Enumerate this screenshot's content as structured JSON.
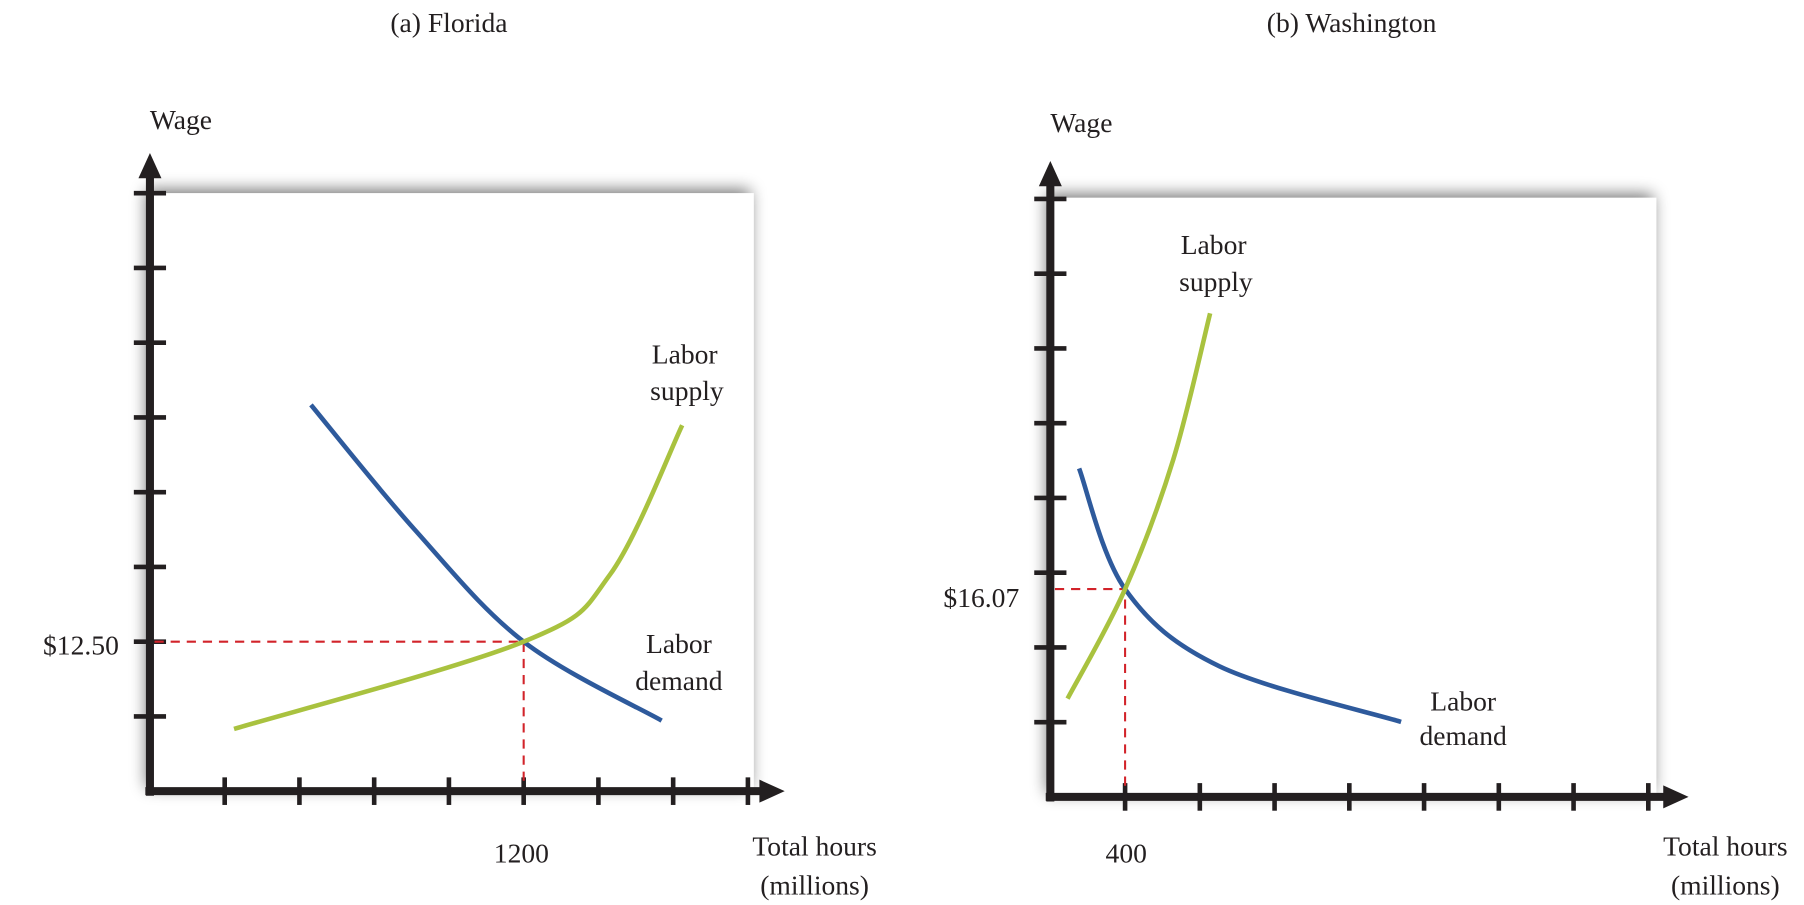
{
  "chart_data": [
    {
      "type": "line",
      "title": "(a) Florida",
      "ylabel": "Wage",
      "xlabel": [
        "Total hours",
        "(millions)"
      ],
      "x_tick_step": 240,
      "y_tick_step": 6.25,
      "xlim": [
        0,
        1920
      ],
      "ylim": [
        0,
        50
      ],
      "ticks_x": 8,
      "ticks_y": 8,
      "equilibrium": {
        "x": 1200,
        "y": 12.5,
        "x_label": "1200",
        "y_label": "$12.50"
      },
      "series": [
        {
          "name": "Labor demand",
          "label_lines": [
            "Labor",
            "demand"
          ],
          "color": "#2e5a9c",
          "points": [
            [
              517,
              32.3
            ],
            [
              849,
              21.9
            ],
            [
              1200,
              12.5
            ],
            [
              1643,
              5.9
            ]
          ]
        },
        {
          "name": "Labor supply",
          "label_lines": [
            "Labor",
            "supply"
          ],
          "color": "#a9c23f",
          "points": [
            [
              270,
              5.2
            ],
            [
              1200,
              12.5
            ],
            [
              1477,
              18.1
            ],
            [
              1709,
              30.6
            ]
          ]
        }
      ]
    },
    {
      "type": "line",
      "title": "(b) Washington",
      "ylabel": "Wage",
      "xlabel": [
        "Total hours",
        "(millions)"
      ],
      "x_tick_step": 400,
      "y_tick_step": 5.78,
      "xlim": [
        0,
        3200
      ],
      "ylim": [
        0,
        46.2
      ],
      "ticks_x": 8,
      "ticks_y": 8,
      "equilibrium": {
        "x": 400,
        "y": 16.07,
        "x_label": "400",
        "y_label": "$16.07"
      },
      "series": [
        {
          "name": "Labor demand",
          "label_lines": [
            "Labor",
            "demand"
          ],
          "color": "#2e5a9c",
          "points": [
            [
              154,
              25.4
            ],
            [
              400,
              16.07
            ],
            [
              905,
              10.1
            ],
            [
              1877,
              5.8
            ]
          ]
        },
        {
          "name": "Labor supply",
          "label_lines": [
            "Labor",
            "supply"
          ],
          "color": "#a9c23f",
          "points": [
            [
              92,
              7.6
            ],
            [
              400,
              16.07
            ],
            [
              658,
              26.1
            ],
            [
              855,
              37.4
            ]
          ]
        }
      ]
    }
  ]
}
